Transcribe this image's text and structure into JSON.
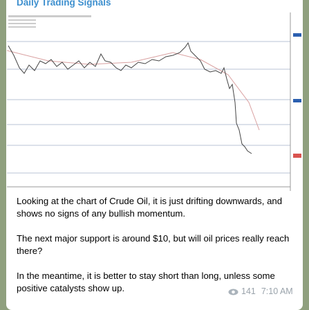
{
  "header": {
    "title": "Daily Trading Signals"
  },
  "message": {
    "paragraphs": [
      "Looking at the chart of Crude Oil, it is just drifting downwards, and shows no signs of any bullish momentum.",
      "The next major support is around $10, but will oil prices really reach there?",
      "In the meantime, it is better to stay short than long, unless some positive catalysts show up."
    ],
    "views": "141",
    "time": "7:10 AM"
  }
}
